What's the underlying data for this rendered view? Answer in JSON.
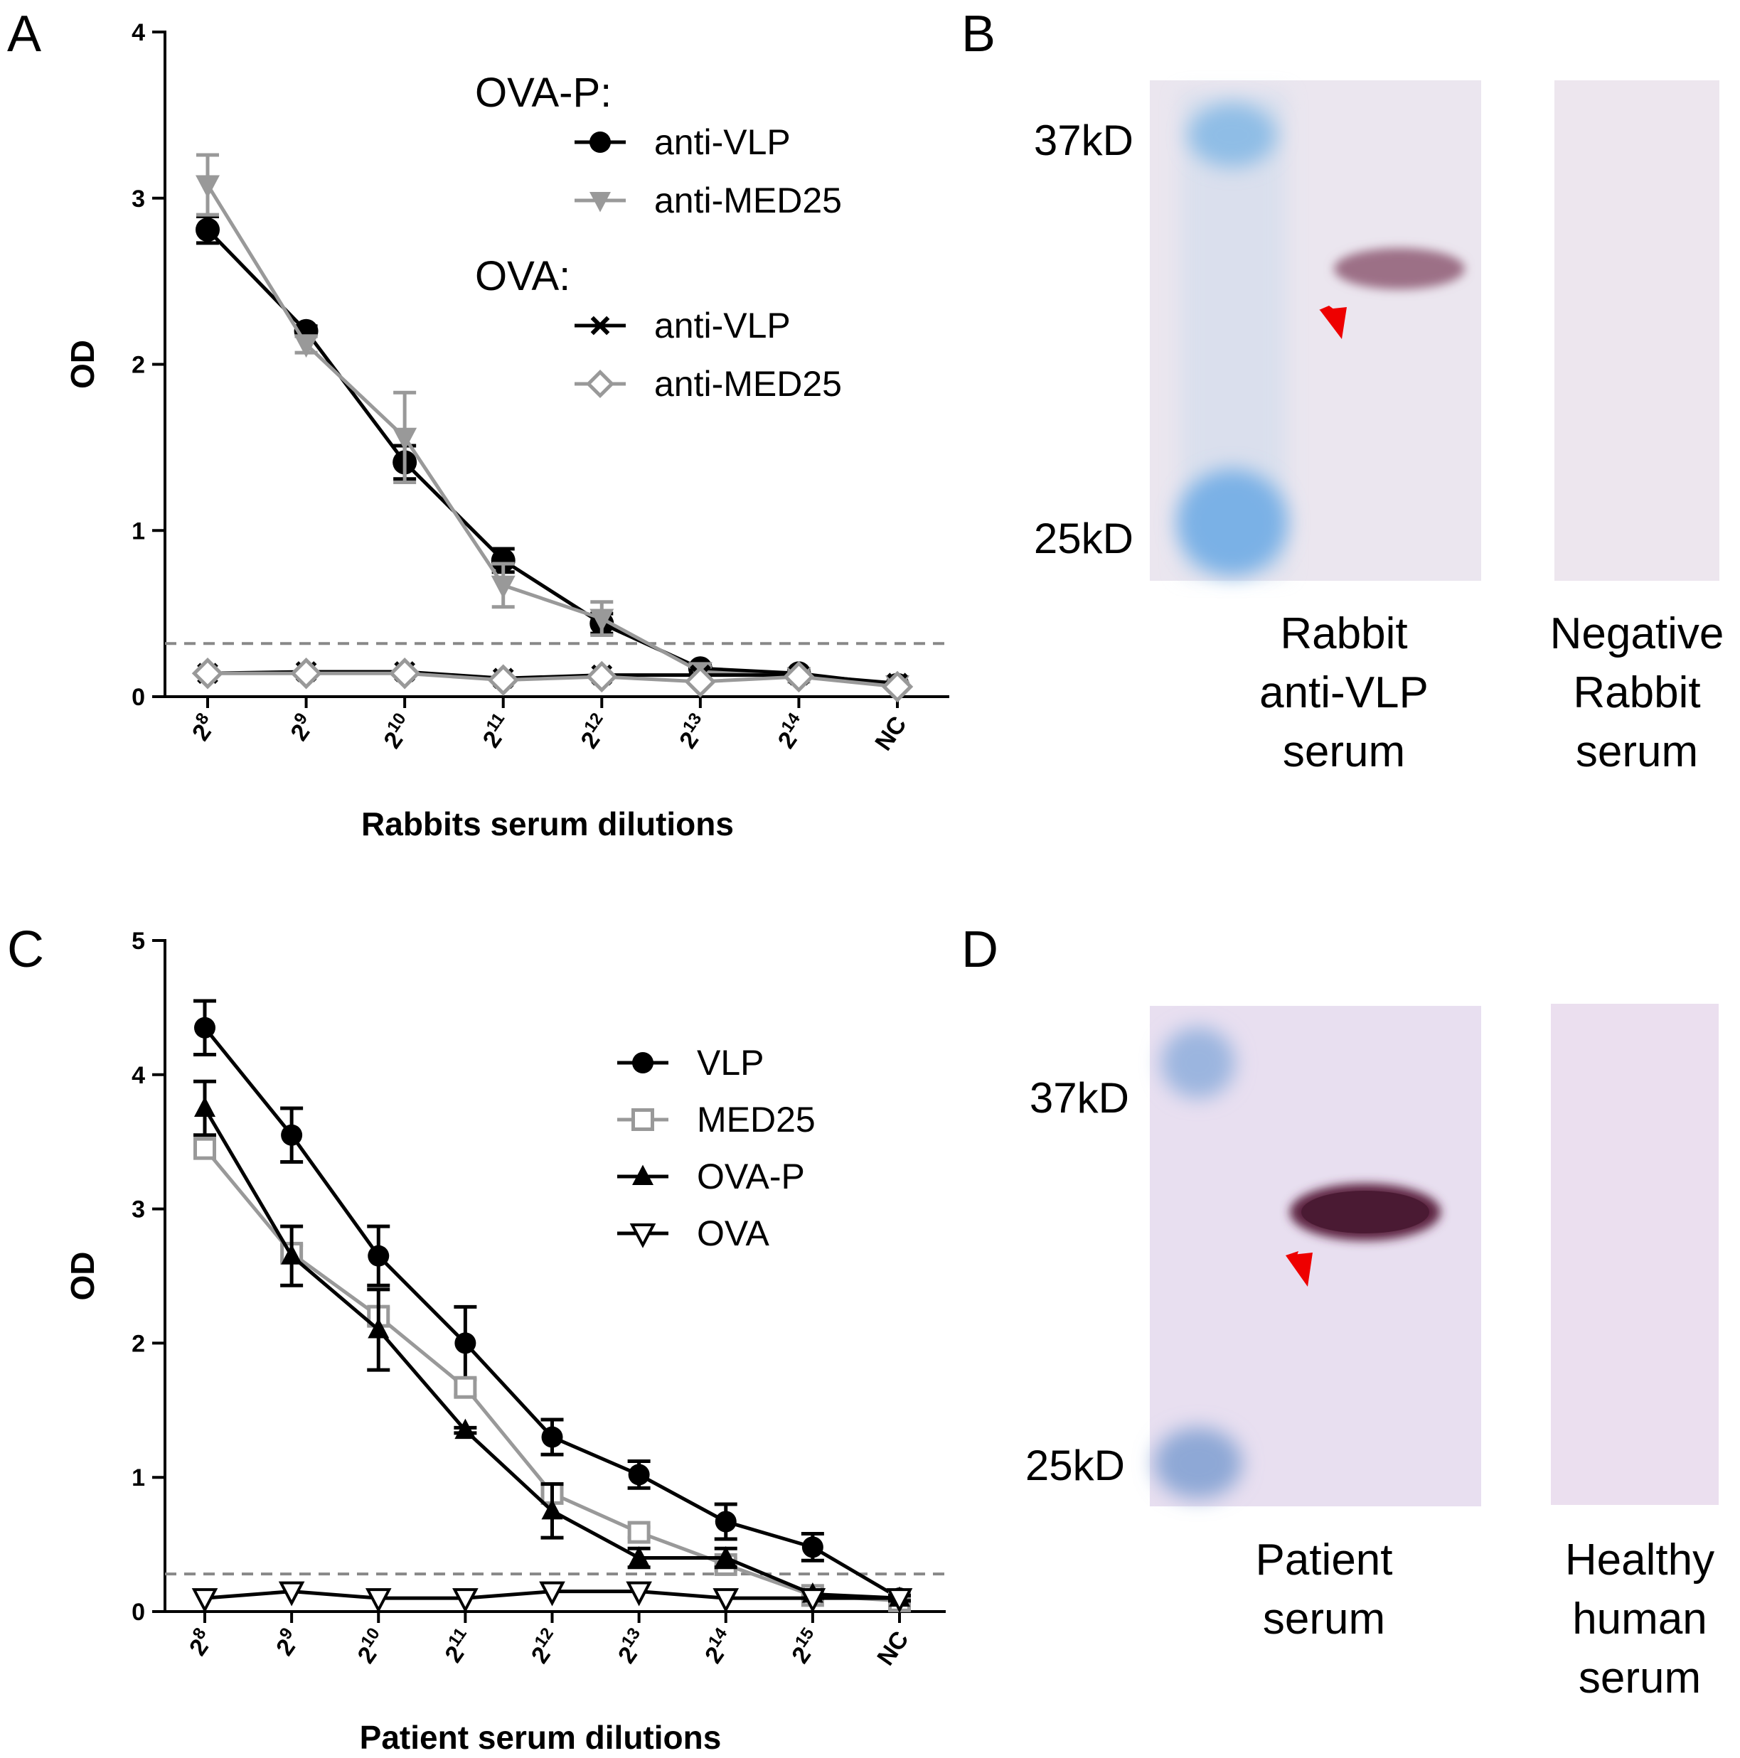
{
  "panels": {
    "a": "A",
    "b": "B",
    "c": "C",
    "d": "D"
  },
  "colors": {
    "black_series": "#000000",
    "gray_series": "#999999",
    "threshold": "#888888",
    "arrow": "#ee0000",
    "ladder": "#6aa6dc",
    "band": "#6e2f4a"
  },
  "chart_data": [
    {
      "id": "A",
      "type": "line",
      "xlabel": "Rabbits serum dilutions",
      "ylabel": "OD",
      "ylim": [
        0,
        4
      ],
      "yticks": [
        "0",
        "1",
        "2",
        "3",
        "4"
      ],
      "categories": [
        {
          "base": "2",
          "exp": "8"
        },
        {
          "base": "2",
          "exp": "9"
        },
        {
          "base": "2",
          "exp": "10"
        },
        {
          "base": "2",
          "exp": "11"
        },
        {
          "base": "2",
          "exp": "12"
        },
        {
          "base": "2",
          "exp": "13"
        },
        {
          "base": "2",
          "exp": "14"
        },
        {
          "base": "NC",
          "exp": ""
        }
      ],
      "threshold": 0.32,
      "legend_groups": [
        {
          "label": "OVA-P:"
        },
        {
          "label": "OVA:"
        }
      ],
      "series": [
        {
          "name": "anti-VLP",
          "group": "OVA-P:",
          "color": "#000000",
          "marker": "circle",
          "values": [
            2.81,
            2.2,
            1.41,
            0.82,
            0.44,
            0.17,
            0.14,
            0.07
          ],
          "errors": [
            0.08,
            0.03,
            0.1,
            0.07,
            0.06,
            0.02,
            0.02,
            0.02
          ]
        },
        {
          "name": "anti-MED25",
          "group": "OVA-P:",
          "color": "#999999",
          "marker": "triangle-down",
          "values": [
            3.08,
            2.12,
            1.56,
            0.67,
            0.47,
            0.15,
            0.12,
            0.07
          ],
          "errors": [
            0.18,
            0.05,
            0.27,
            0.13,
            0.1,
            0.03,
            0.03,
            0.02
          ]
        },
        {
          "name": "anti-VLP",
          "group": "OVA:",
          "color": "#000000",
          "marker": "x",
          "values": [
            0.14,
            0.15,
            0.15,
            0.11,
            0.13,
            0.13,
            0.13,
            0.08
          ],
          "errors": [
            0,
            0,
            0,
            0,
            0,
            0,
            0,
            0
          ]
        },
        {
          "name": "anti-MED25",
          "group": "OVA:",
          "color": "#999999",
          "marker": "diamond",
          "values": [
            0.14,
            0.14,
            0.14,
            0.1,
            0.12,
            0.09,
            0.12,
            0.06
          ],
          "errors": [
            0,
            0,
            0,
            0,
            0,
            0,
            0,
            0
          ]
        }
      ]
    },
    {
      "id": "C",
      "type": "line",
      "xlabel": "Patient serum dilutions",
      "ylabel": "OD",
      "ylim": [
        0,
        5
      ],
      "yticks": [
        "0",
        "1",
        "2",
        "3",
        "4",
        "5"
      ],
      "categories": [
        {
          "base": "2",
          "exp": "8"
        },
        {
          "base": "2",
          "exp": "9"
        },
        {
          "base": "2",
          "exp": "10"
        },
        {
          "base": "2",
          "exp": "11"
        },
        {
          "base": "2",
          "exp": "12"
        },
        {
          "base": "2",
          "exp": "13"
        },
        {
          "base": "2",
          "exp": "14"
        },
        {
          "base": "2",
          "exp": "15"
        },
        {
          "base": "NC",
          "exp": ""
        }
      ],
      "threshold": 0.28,
      "series": [
        {
          "name": "VLP",
          "color": "#000000",
          "marker": "circle",
          "values": [
            4.35,
            3.55,
            2.65,
            2.0,
            1.3,
            1.02,
            0.67,
            0.48,
            0.1
          ],
          "errors": [
            0.2,
            0.2,
            0.22,
            0.27,
            0.13,
            0.1,
            0.13,
            0.1,
            0.02
          ]
        },
        {
          "name": "MED25",
          "color": "#999999",
          "marker": "square-open",
          "values": [
            3.45,
            2.67,
            2.2,
            1.67,
            0.88,
            0.59,
            0.35,
            0.12,
            0.08
          ],
          "errors": [
            0.06,
            0.06,
            0.06,
            0.06,
            0.05,
            0.04,
            0.04,
            0.02,
            0.02
          ]
        },
        {
          "name": "OVA-P",
          "color": "#000000",
          "marker": "triangle-up",
          "values": [
            3.75,
            2.65,
            2.1,
            1.35,
            0.75,
            0.4,
            0.4,
            0.13,
            0.1
          ],
          "errors": [
            0.2,
            0.22,
            0.3,
            0.02,
            0.2,
            0.07,
            0.07,
            0.03,
            0.02
          ]
        },
        {
          "name": "OVA",
          "color": "#000000",
          "marker": "triangle-down-open",
          "values": [
            0.1,
            0.15,
            0.1,
            0.1,
            0.15,
            0.15,
            0.1,
            0.1,
            0.1
          ],
          "errors": [
            0,
            0,
            0,
            0,
            0,
            0,
            0,
            0,
            0
          ]
        }
      ]
    }
  ],
  "blot_b": {
    "marker_high": "37kD",
    "marker_low": "25kD",
    "lane1_caption": [
      "Rabbit",
      "anti-VLP",
      "serum"
    ],
    "lane2_caption": [
      "Negative",
      "Rabbit",
      "serum"
    ]
  },
  "blot_d": {
    "marker_high": "37kD",
    "marker_low": "25kD",
    "lane1_caption": [
      "Patient",
      "serum"
    ],
    "lane2_caption": [
      "Healthy",
      "human",
      "serum"
    ]
  }
}
